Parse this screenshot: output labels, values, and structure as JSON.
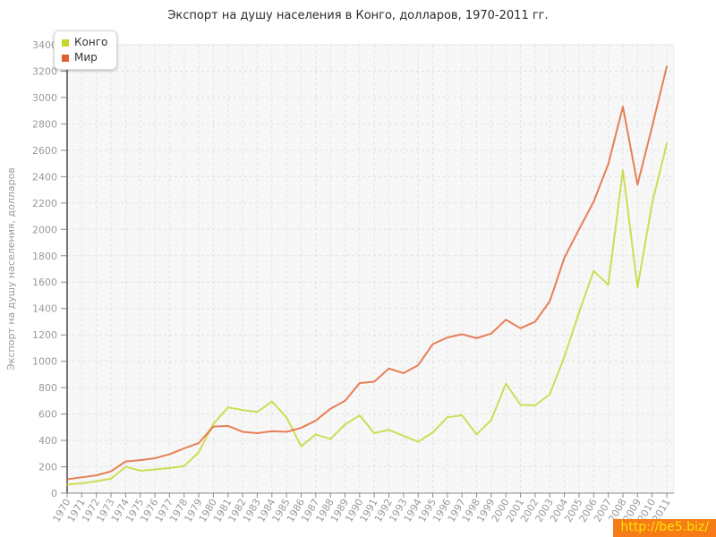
{
  "title": "Экспорт на душу населения в Конго, долларов, 1970-2011 гг.",
  "watermark": {
    "text": "http://be5.biz/"
  },
  "axes": {
    "y_title": "Экспорт на душу населения, долларов",
    "y_tick_color": "#999999",
    "x_tick_color": "#999999",
    "axis_line_color": "#8a8a8a",
    "grid_color": "#e2e2e2",
    "plot_bg": "#f7f7f7"
  },
  "chart_data": {
    "type": "line",
    "title": "Экспорт на душу населения в Конго, долларов, 1970-2011 гг.",
    "xlabel": "",
    "ylabel": "Экспорт на душу населения, долларов",
    "ylim": [
      0,
      3400
    ],
    "ytick_step": 200,
    "grid": true,
    "legend_position": "top-left",
    "x": [
      1970,
      1971,
      1972,
      1973,
      1974,
      1975,
      1976,
      1977,
      1978,
      1979,
      1980,
      1981,
      1982,
      1983,
      1984,
      1985,
      1986,
      1987,
      1988,
      1989,
      1990,
      1991,
      1992,
      1993,
      1994,
      1995,
      1996,
      1997,
      1998,
      1999,
      2000,
      2001,
      2002,
      2003,
      2004,
      2005,
      2006,
      2007,
      2008,
      2009,
      2010,
      2011
    ],
    "series": [
      {
        "name": "Конго",
        "color": "#c3d62c",
        "values": [
          65,
          75,
          90,
          110,
          200,
          170,
          180,
          190,
          205,
          310,
          525,
          650,
          630,
          615,
          695,
          575,
          355,
          445,
          410,
          520,
          590,
          455,
          480,
          435,
          390,
          460,
          575,
          590,
          445,
          555,
          830,
          670,
          665,
          750,
          1035,
          1370,
          1685,
          1580,
          2450,
          1560,
          2200,
          2650
        ]
      },
      {
        "name": "Мир",
        "color": "#e2602e",
        "values": [
          105,
          120,
          135,
          165,
          240,
          250,
          265,
          295,
          340,
          380,
          505,
          510,
          465,
          455,
          470,
          465,
          495,
          550,
          640,
          700,
          835,
          845,
          945,
          910,
          970,
          1130,
          1180,
          1205,
          1175,
          1210,
          1315,
          1250,
          1300,
          1455,
          1785,
          2000,
          2210,
          2495,
          2930,
          2340,
          2780,
          3235
        ]
      }
    ]
  }
}
